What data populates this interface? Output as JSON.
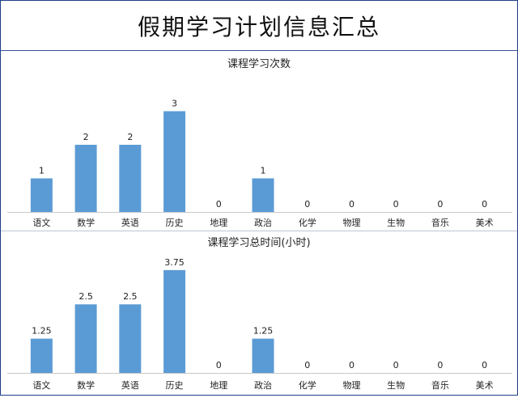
{
  "page": {
    "title": "假期学习计划信息汇总"
  },
  "chart_data": [
    {
      "type": "bar",
      "title": "课程学习次数",
      "categories": [
        "语文",
        "数学",
        "英语",
        "历史",
        "地理",
        "政治",
        "化学",
        "物理",
        "生物",
        "音乐",
        "美术"
      ],
      "values": [
        1,
        2,
        2,
        3,
        0,
        1,
        0,
        0,
        0,
        0,
        0
      ],
      "data_labels": [
        "1",
        "2",
        "2",
        "3",
        "0",
        "1",
        "0",
        "0",
        "0",
        "0",
        "0"
      ],
      "ylim": [
        0,
        3.3
      ],
      "grid": false,
      "bar_color": "#5b9bd5"
    },
    {
      "type": "bar",
      "title": "课程学习总时间(小时)",
      "categories": [
        "语文",
        "数学",
        "英语",
        "历史",
        "地理",
        "政治",
        "化学",
        "物理",
        "生物",
        "音乐",
        "美术"
      ],
      "values": [
        1.25,
        2.5,
        2.5,
        3.75,
        0,
        1.25,
        0,
        0,
        0,
        0,
        0
      ],
      "data_labels": [
        "1.25",
        "2.5",
        "2.5",
        "3.75",
        "0",
        "1.25",
        "0",
        "0",
        "0",
        "0",
        "0"
      ],
      "ylim": [
        0,
        4.1
      ],
      "grid": false,
      "bar_color": "#5b9bd5"
    }
  ]
}
